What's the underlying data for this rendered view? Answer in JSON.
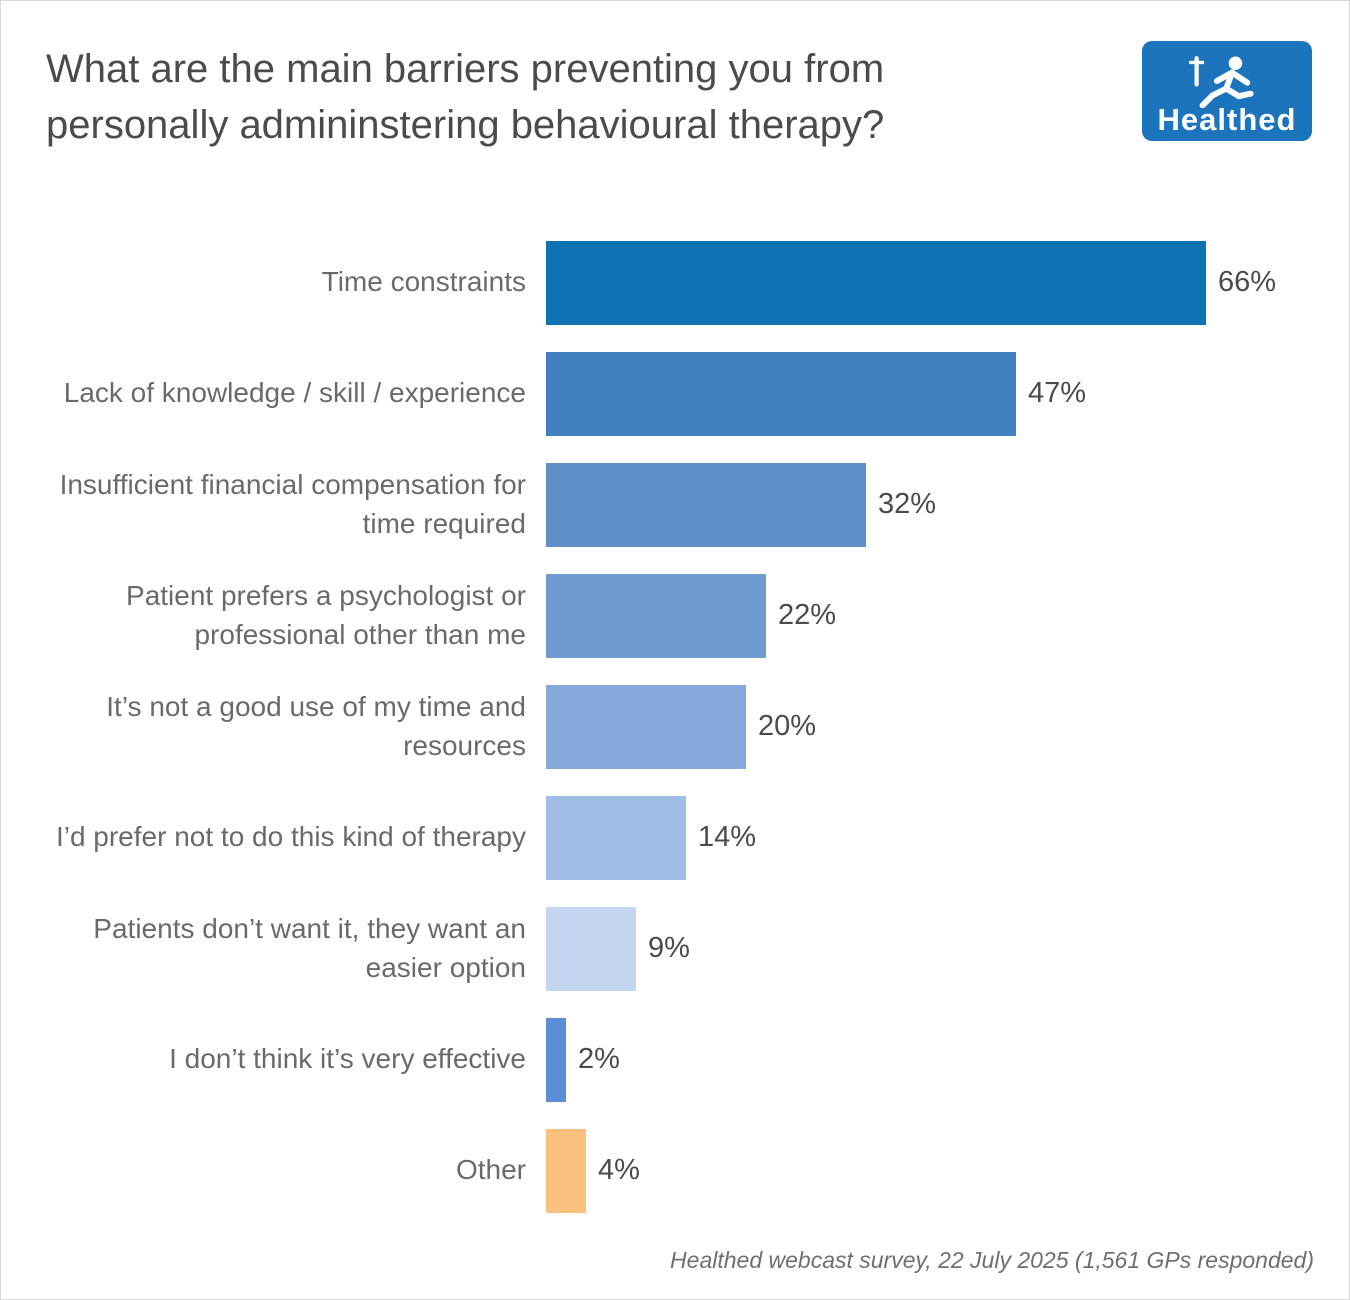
{
  "header": {
    "title": "What are the main barriers preventing you from personally admininstering behavioural therapy?",
    "logo_text": "Healthed"
  },
  "footer": {
    "source": "Healthed webcast survey, 22 July 2025 (1,561 GPs responded)"
  },
  "chart_data": {
    "type": "bar",
    "orientation": "horizontal",
    "title": "What are the main barriers preventing you from personally admininstering behavioural therapy?",
    "categories": [
      "Time constraints",
      "Lack of knowledge / skill / experience",
      "Insufficient financial compensation for time required",
      "Patient prefers a psychologist or professional other than me",
      "It’s not a good use of my time and resources",
      "I’d prefer not to do this kind of therapy",
      "Patients don’t want it, they want an easier option",
      "I don’t think it’s very effective",
      "Other"
    ],
    "values": [
      66,
      47,
      32,
      22,
      20,
      14,
      9,
      2,
      4
    ],
    "value_labels": [
      "66%",
      "47%",
      "32%",
      "22%",
      "20%",
      "14%",
      "9%",
      "2%",
      "4%"
    ],
    "bar_colors": [
      "#0e73b2",
      "#4180c1",
      "#6090ca",
      "#6f9bd3",
      "#85a9db",
      "#a0bde6",
      "#c3d5ef",
      "#5c8ed6",
      "#fac17e"
    ],
    "xlim": [
      0,
      70
    ],
    "grid": false,
    "legend": false,
    "source": "Healthed webcast survey, 22 July 2025 (1,561 GPs responded)"
  }
}
